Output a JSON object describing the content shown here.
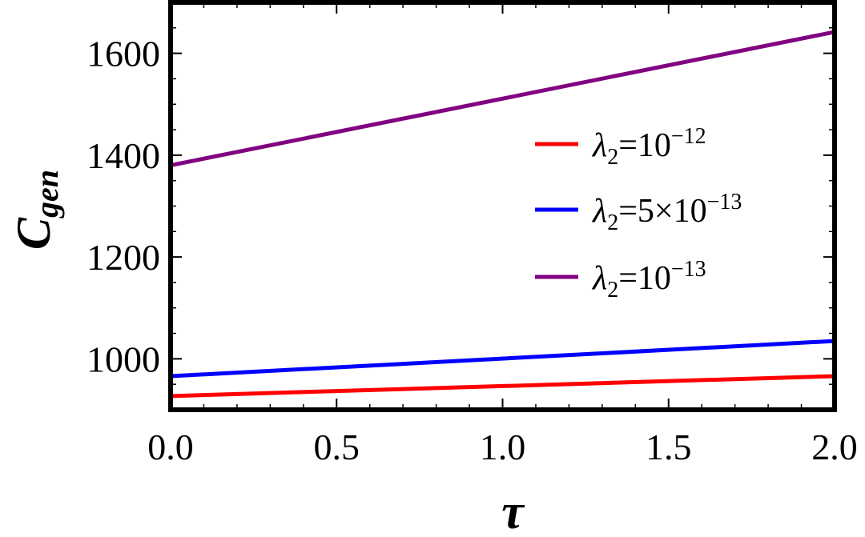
{
  "chart_data": {
    "type": "line",
    "xlabel": "τ",
    "ylabel": "C",
    "ylabel_subscript": "gen",
    "xlim": [
      0,
      2
    ],
    "ylim": [
      900,
      1700
    ],
    "xticks": [
      0.0,
      0.5,
      1.0,
      1.5,
      2.0
    ],
    "xtick_labels": [
      "0.0",
      "0.5",
      "1.0",
      "1.5",
      "2.0"
    ],
    "yticks": [
      1000,
      1200,
      1400,
      1600
    ],
    "ytick_labels": [
      "1000",
      "1200",
      "1400",
      "1600"
    ],
    "grid": false,
    "legend_position": "right",
    "series": [
      {
        "name": "λ2=10−12",
        "legend": {
          "sym": "λ",
          "sub": "2",
          "base": "=10",
          "sup": "−12"
        },
        "color": "#ff0000",
        "x": [
          0,
          2
        ],
        "y": [
          927,
          966
        ]
      },
      {
        "name": "λ2=5×10−13",
        "legend": {
          "sym": "λ",
          "sub": "2",
          "base": "=5×10",
          "sup": "−13"
        },
        "color": "#0000ff",
        "x": [
          0,
          2
        ],
        "y": [
          966,
          1035
        ]
      },
      {
        "name": "λ2=10−13",
        "legend": {
          "sym": "λ",
          "sub": "2",
          "base": "=10",
          "sup": "−13"
        },
        "color": "#800080",
        "x": [
          0,
          2
        ],
        "y": [
          1380,
          1642
        ]
      }
    ]
  }
}
